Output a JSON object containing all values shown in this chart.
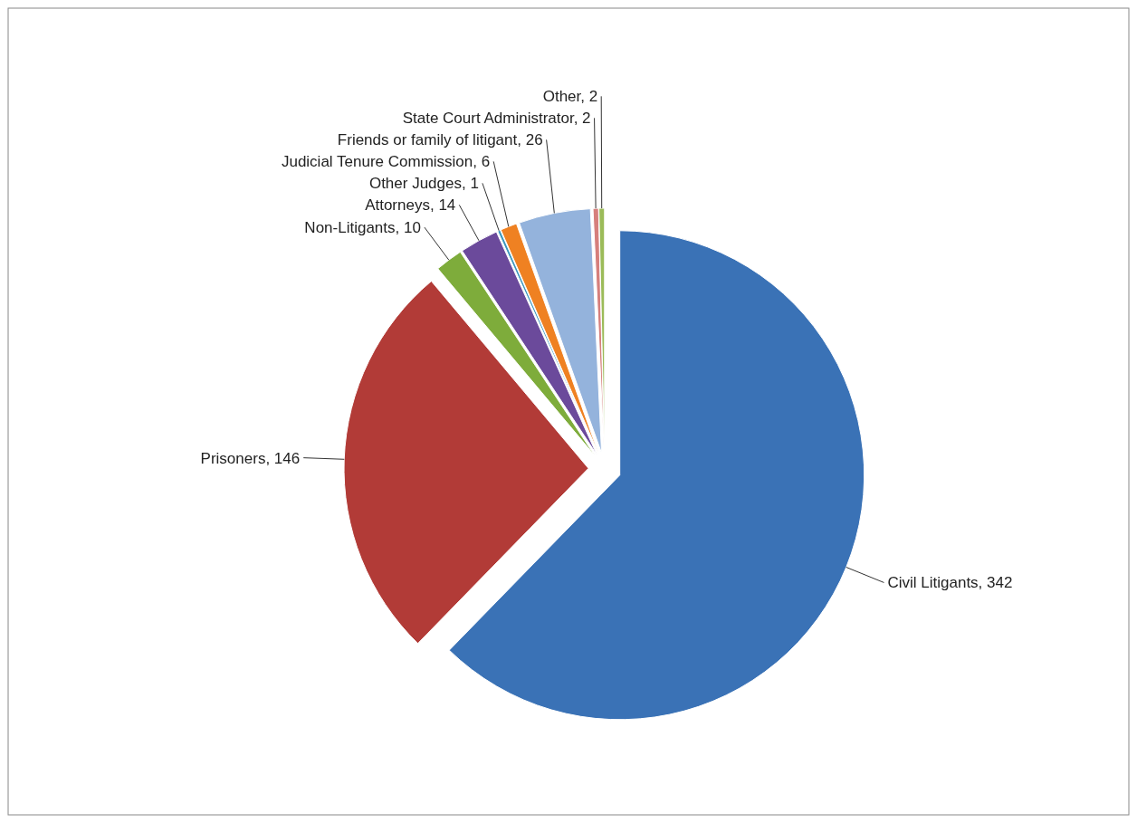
{
  "chart_data": {
    "type": "pie",
    "categories": [
      "Civil Litigants",
      "Prisoners",
      "Non-Litigants",
      "Attorneys",
      "Other Judges",
      "Judicial Tenure Commission",
      "Friends or family of litigant",
      "State Court Administrator",
      "Other"
    ],
    "values": [
      342,
      146,
      10,
      14,
      1,
      6,
      26,
      2,
      2
    ],
    "colors": [
      "#3a72b6",
      "#b23b37",
      "#7eac3b",
      "#6b4a9b",
      "#3b97bd",
      "#ef8122",
      "#94b3dc",
      "#d67f7c",
      "#9bbb59"
    ],
    "value_labels": [
      ", 342",
      ", 146",
      ", 10",
      ", 14",
      ", 1",
      ", 6",
      ", 26",
      ", 2",
      ", 2"
    ],
    "legend": false
  }
}
